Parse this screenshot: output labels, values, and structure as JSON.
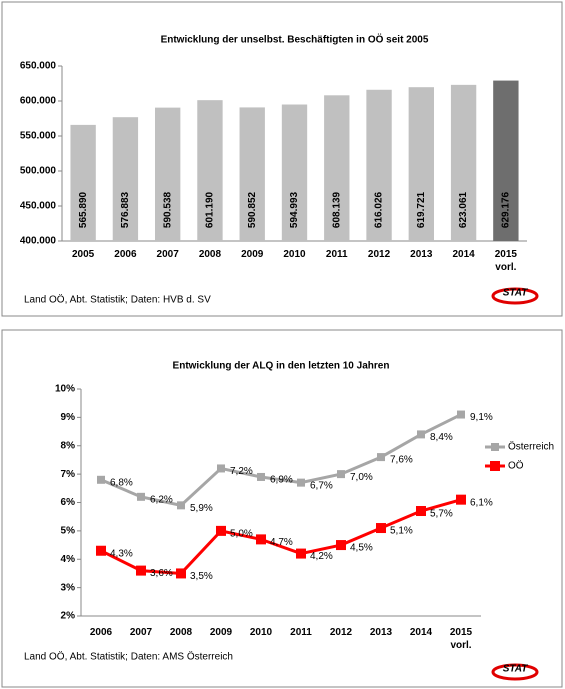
{
  "chart_data": [
    {
      "type": "bar",
      "title": "Entwicklung der unselbst. Beschäftigten in OÖ seit 2005",
      "categories": [
        "2005",
        "2006",
        "2007",
        "2008",
        "2009",
        "2010",
        "2011",
        "2012",
        "2013",
        "2014",
        "2015\nvorl."
      ],
      "values": [
        565890,
        576883,
        590538,
        601190,
        590852,
        594993,
        608139,
        616026,
        619721,
        623061,
        629176
      ],
      "value_labels": [
        "565.890",
        "576.883",
        "590.538",
        "601.190",
        "590.852",
        "594.993",
        "608.139",
        "616.026",
        "619.721",
        "623.061",
        "629.176"
      ],
      "colors": [
        "#c0c0c0",
        "#c0c0c0",
        "#c0c0c0",
        "#c0c0c0",
        "#c0c0c0",
        "#c0c0c0",
        "#c0c0c0",
        "#c0c0c0",
        "#c0c0c0",
        "#c0c0c0",
        "#6e6e6e"
      ],
      "ylim": [
        400000,
        650000
      ],
      "yticks": [
        {
          "value": 400000,
          "label": "400.000"
        },
        {
          "value": 450000,
          "label": "450.000"
        },
        {
          "value": 500000,
          "label": "500.000"
        },
        {
          "value": 550000,
          "label": "550.000"
        },
        {
          "value": 600000,
          "label": "600.000"
        },
        {
          "value": 650000,
          "label": "650.000"
        }
      ],
      "grid": false,
      "source": "Land OÖ, Abt. Statistik; Daten: HVB d. SV",
      "logo": "STAT"
    },
    {
      "type": "line",
      "title": "Entwicklung der ALQ in den letzten 10 Jahren",
      "categories": [
        "2006",
        "2007",
        "2008",
        "2009",
        "2010",
        "2011",
        "2012",
        "2013",
        "2014",
        "2015\nvorl."
      ],
      "series": [
        {
          "name": "Österreich",
          "color": "#a6a6a6",
          "values": [
            6.8,
            6.2,
            5.9,
            7.2,
            6.9,
            6.7,
            7.0,
            7.6,
            8.4,
            9.1
          ],
          "value_labels": [
            "6,8%",
            "6,2%",
            "5,9%",
            "7,2%",
            "6,9%",
            "6,7%",
            "7,0%",
            "7,6%",
            "8,4%",
            "9,1%"
          ]
        },
        {
          "name": "OÖ",
          "color": "#ff0000",
          "values": [
            4.3,
            3.6,
            3.5,
            5.0,
            4.7,
            4.2,
            4.5,
            5.1,
            5.7,
            6.1
          ],
          "value_labels": [
            "4,3%",
            "3,6%",
            "3,5%",
            "5,0%",
            "4,7%",
            "4,2%",
            "4,5%",
            "5,1%",
            "5,7%",
            "6,1%"
          ]
        }
      ],
      "ylim": [
        2,
        10
      ],
      "yticks": [
        {
          "value": 2,
          "label": "2%"
        },
        {
          "value": 3,
          "label": "3%"
        },
        {
          "value": 4,
          "label": "4%"
        },
        {
          "value": 5,
          "label": "5%"
        },
        {
          "value": 6,
          "label": "6%"
        },
        {
          "value": 7,
          "label": "7%"
        },
        {
          "value": 8,
          "label": "8%"
        },
        {
          "value": 9,
          "label": "9%"
        },
        {
          "value": 10,
          "label": "10%"
        }
      ],
      "grid": false,
      "legend": "right",
      "source": "Land OÖ, Abt. Statistik; Daten: AMS Österreich",
      "logo": "STAT"
    }
  ]
}
